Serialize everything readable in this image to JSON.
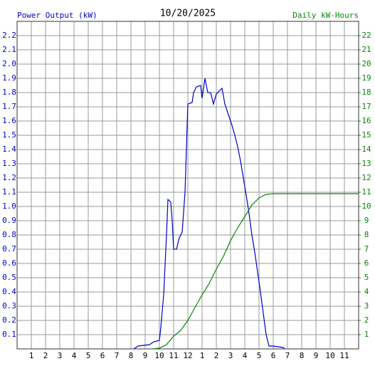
{
  "chart_data": {
    "type": "line",
    "title": "10/20/2025",
    "y_label": "Power Output (kW)",
    "y2_label": "Daily kW-Hours",
    "xlim": [
      0,
      24
    ],
    "xticks": [
      {
        "value": 1,
        "label": "1"
      },
      {
        "value": 2,
        "label": "2"
      },
      {
        "value": 3,
        "label": "3"
      },
      {
        "value": 4,
        "label": "4"
      },
      {
        "value": 5,
        "label": "5"
      },
      {
        "value": 6,
        "label": "6"
      },
      {
        "value": 7,
        "label": "7"
      },
      {
        "value": 8,
        "label": "8"
      },
      {
        "value": 9,
        "label": "9"
      },
      {
        "value": 10,
        "label": "10"
      },
      {
        "value": 11,
        "label": "11"
      },
      {
        "value": 12,
        "label": "12"
      },
      {
        "value": 13,
        "label": "1"
      },
      {
        "value": 14,
        "label": "2"
      },
      {
        "value": 15,
        "label": "3"
      },
      {
        "value": 16,
        "label": "4"
      },
      {
        "value": 17,
        "label": "5"
      },
      {
        "value": 18,
        "label": "6"
      },
      {
        "value": 19,
        "label": "7"
      },
      {
        "value": 20,
        "label": "8"
      },
      {
        "value": 21,
        "label": "9"
      },
      {
        "value": 22,
        "label": "10"
      },
      {
        "value": 23,
        "label": "11"
      }
    ],
    "ylim": [
      0,
      2.3
    ],
    "yticks": [
      0.1,
      0.2,
      0.3,
      0.4,
      0.5,
      0.6,
      0.7,
      0.8,
      0.9,
      {
        "value": 1,
        "label": "1.0"
      },
      1.1,
      1.2,
      1.3,
      1.4,
      1.5,
      1.6,
      1.7,
      1.8,
      1.9,
      {
        "value": 2,
        "label": "2.0"
      },
      2.1,
      2.2
    ],
    "y2lim": [
      0,
      23
    ],
    "y2ticks": [
      1,
      2,
      3,
      4,
      5,
      6,
      7,
      8,
      9,
      10,
      11,
      12,
      13,
      14,
      15,
      16,
      17,
      18,
      19,
      20,
      21,
      22
    ],
    "grid": true,
    "series": [
      {
        "name": "Power Output (kW)",
        "color": "#0000cc",
        "x": [
          8.2,
          8.5,
          9.3,
          9.6,
          10.0,
          10.1,
          10.3,
          10.5,
          10.6,
          10.8,
          10.9,
          11.0,
          11.2,
          11.4,
          11.6,
          11.8,
          12.0,
          12.3,
          12.4,
          12.6,
          12.9,
          13.0,
          13.2,
          13.4,
          13.6,
          13.8,
          14.0,
          14.3,
          14.4,
          14.6,
          14.9,
          15.1,
          15.3,
          15.5,
          15.7,
          15.9,
          16.1,
          16.3,
          16.5,
          16.7,
          16.9,
          17.1,
          17.3,
          17.5,
          17.7,
          18.0,
          18.7,
          18.8
        ],
        "values": [
          0,
          0.02,
          0.03,
          0.05,
          0.06,
          0.15,
          0.38,
          0.8,
          1.05,
          1.03,
          0.9,
          0.7,
          0.7,
          0.78,
          0.82,
          1.1,
          1.72,
          1.73,
          1.8,
          1.84,
          1.85,
          1.76,
          1.9,
          1.8,
          1.8,
          1.72,
          1.79,
          1.82,
          1.83,
          1.72,
          1.63,
          1.57,
          1.5,
          1.42,
          1.32,
          1.2,
          1.08,
          0.95,
          0.8,
          0.68,
          0.54,
          0.4,
          0.25,
          0.1,
          0.02,
          0.02,
          0.01,
          0
        ]
      },
      {
        "name": "Daily kW-Hours",
        "color": "#008800",
        "axis": "y2",
        "x": [
          9.5,
          10.0,
          10.5,
          11.0,
          11.5,
          12.0,
          12.5,
          13.0,
          13.5,
          14.0,
          14.5,
          15.0,
          15.5,
          16.0,
          16.5,
          17.0,
          17.5,
          18.0,
          24.0
        ],
        "values": [
          0,
          0.05,
          0.3,
          0.9,
          1.3,
          2.0,
          2.9,
          3.8,
          4.6,
          5.6,
          6.5,
          7.6,
          8.5,
          9.3,
          10.1,
          10.6,
          10.85,
          10.9,
          10.9
        ]
      }
    ]
  }
}
